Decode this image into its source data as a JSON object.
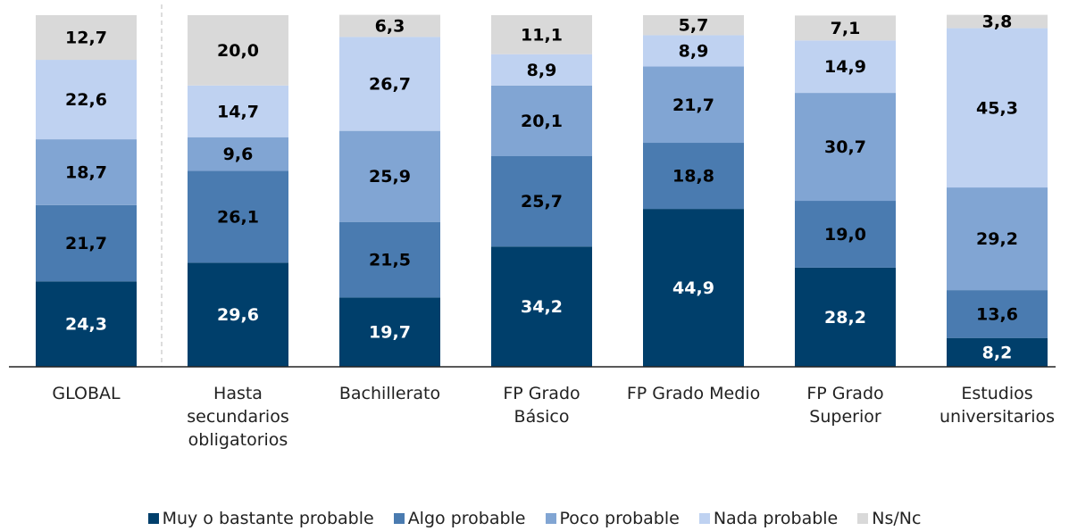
{
  "chart_data": {
    "type": "stacked_bar",
    "categories": [
      "GLOBAL",
      "Hasta secundarios obligatorios",
      "Bachillerato",
      "FP Grado Básico",
      "FP Grado Medio",
      "FP Grado Superior",
      "Estudios universitarios"
    ],
    "ylim": [
      0,
      100
    ],
    "legend": "bottom",
    "series": [
      {
        "name": "Muy o bastante probable",
        "color": "#003f6b",
        "label_color": "#ffffff",
        "values": [
          24.3,
          29.6,
          19.7,
          34.2,
          44.9,
          28.2,
          8.2
        ],
        "value_labels": [
          "24,3",
          "29,6",
          "19,7",
          "34,2",
          "44,9",
          "28,2",
          "8,2"
        ]
      },
      {
        "name": "Algo probable",
        "color": "#4a7bb0",
        "label_color": "#000000",
        "values": [
          21.7,
          26.1,
          21.5,
          25.7,
          18.8,
          19.0,
          13.6
        ],
        "value_labels": [
          "21,7",
          "26,1",
          "21,5",
          "25,7",
          "18,8",
          "19,0",
          "13,6"
        ]
      },
      {
        "name": "Poco probable",
        "color": "#81a5d3",
        "label_color": "#000000",
        "values": [
          18.7,
          9.6,
          25.9,
          20.1,
          21.7,
          30.7,
          29.2
        ],
        "value_labels": [
          "18,7",
          "9,6",
          "25,9",
          "20,1",
          "21,7",
          "30,7",
          "29,2"
        ]
      },
      {
        "name": "Nada probable",
        "color": "#bfd2f1",
        "label_color": "#000000",
        "values": [
          22.6,
          14.7,
          26.7,
          8.9,
          8.9,
          14.9,
          45.3
        ],
        "value_labels": [
          "22,6",
          "14,7",
          "26,7",
          "8,9",
          "8,9",
          "14,9",
          "45,3"
        ]
      },
      {
        "name": "Ns/Nc",
        "color": "#d9d9d9",
        "label_color": "#000000",
        "values": [
          12.7,
          20.0,
          6.3,
          11.1,
          5.7,
          7.1,
          3.8
        ],
        "value_labels": [
          "12,7",
          "20,0",
          "6,3",
          "11,1",
          "5,7",
          "7,1",
          "3,8"
        ]
      }
    ]
  }
}
